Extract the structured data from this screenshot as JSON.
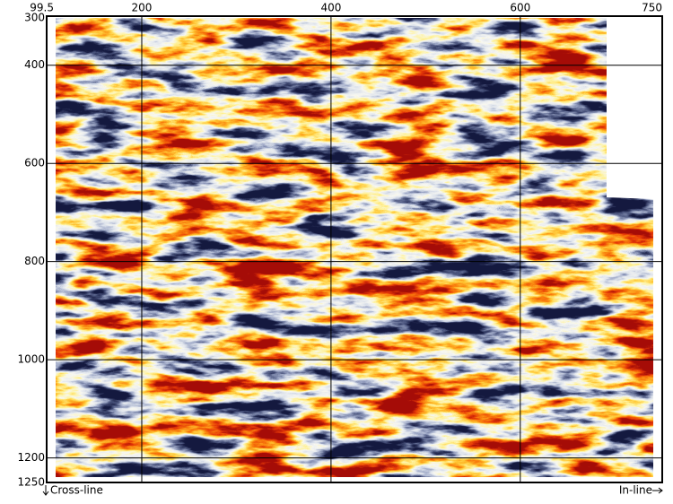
{
  "axes": {
    "x_ticks": [
      99.5,
      200,
      400,
      600,
      750
    ],
    "y_ticks": [
      300,
      400,
      600,
      800,
      1000,
      1200,
      1250
    ]
  },
  "labels": {
    "cross_line": "Cross-line",
    "in_line": "In-line"
  }
}
